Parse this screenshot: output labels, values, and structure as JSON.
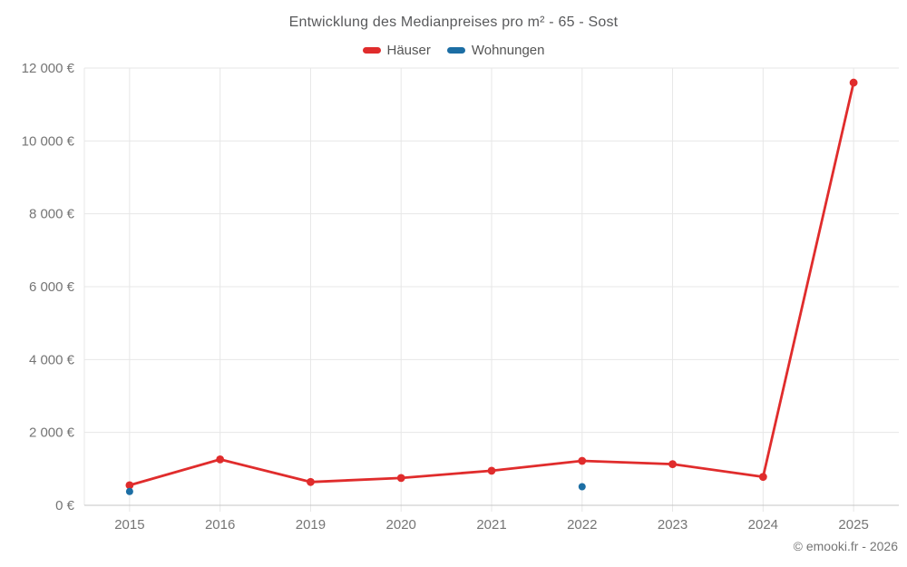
{
  "chart_data": {
    "type": "line",
    "title": "Entwicklung des Medianpreises pro m² - 65 - Sost",
    "categories": [
      "2015",
      "2016",
      "2019",
      "2020",
      "2021",
      "2022",
      "2023",
      "2024",
      "2025"
    ],
    "series": [
      {
        "name": "Häuser",
        "color": "#e02c2c",
        "show_line": true,
        "line_width": 2.8,
        "point_radius": 4.4,
        "values": [
          550,
          1260,
          640,
          750,
          950,
          1220,
          1130,
          780,
          11600
        ]
      },
      {
        "name": "Wohnungen",
        "color": "#1c6ea4",
        "show_line": false,
        "line_width": 2,
        "point_radius": 4,
        "values": [
          380,
          null,
          null,
          null,
          null,
          510,
          null,
          null,
          null
        ]
      }
    ],
    "xlabel": "",
    "ylabel": "",
    "ylim": [
      0,
      12000
    ],
    "ytick_step": 2000,
    "ytick_suffix": "€",
    "grid": true,
    "legend_position": "top"
  },
  "footer": {
    "text": "© emooki.fr - 2026"
  },
  "colors": {
    "background": "#ffffff",
    "grid": "#e7e7e7",
    "axis_line": "#c4c4c4",
    "tick_label": "#757575",
    "title_text": "#58595b",
    "legend_text": "#555555",
    "footer_text": "#757575"
  }
}
